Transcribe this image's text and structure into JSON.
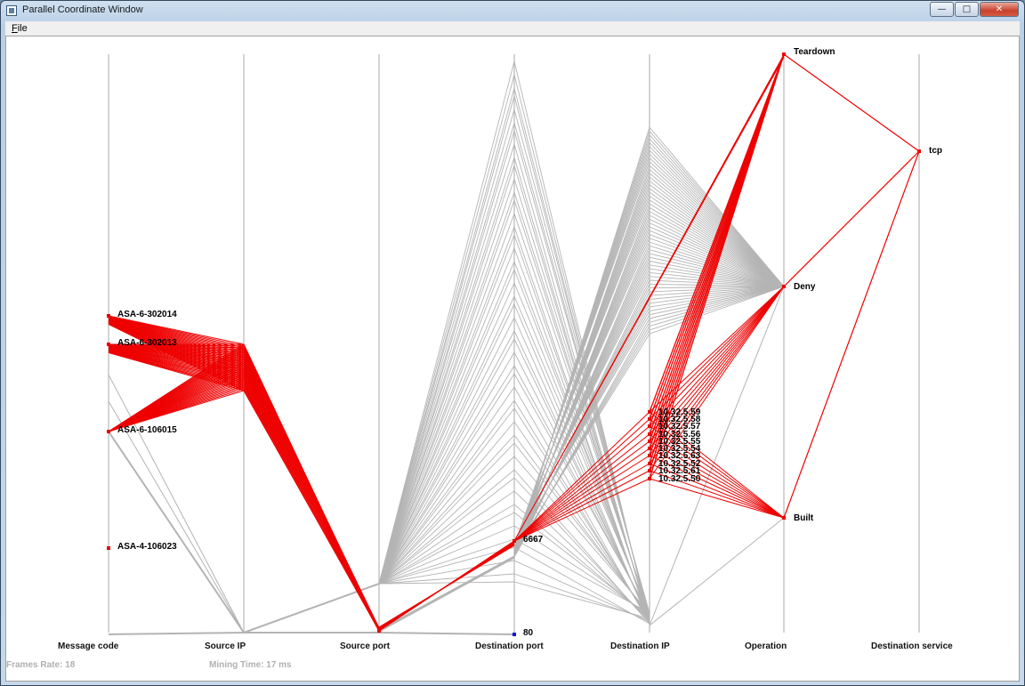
{
  "window": {
    "title": "Parallel Coordinate Window",
    "buttons": {
      "minimize": "—",
      "maximize": "□",
      "close": "✕"
    }
  },
  "menu": {
    "file_accel": "F",
    "file_rest": "ile"
  },
  "plot": {
    "axes": [
      "Message code",
      "Source IP",
      "Source port",
      "Destination port",
      "Destination IP",
      "Operation",
      "Destination service"
    ],
    "message_codes": [
      "ASA-6-302014",
      "ASA-6-302013",
      "ASA-6-106015",
      "ASA-4-106023"
    ],
    "destination_ports": [
      "6667",
      "80"
    ],
    "destination_ips": [
      "10.32.5.59",
      "10.32.5.58",
      "10.32.5.57",
      "10.32.5.56",
      "10.32.5.55",
      "10.32.5.54",
      "10.32.5.63",
      "10.32.5.52",
      "10.32.5.61",
      "10.32.5.50"
    ],
    "operations": [
      "Teardown",
      "Deny",
      "Built"
    ],
    "destination_services": [
      "tcp"
    ],
    "colors": {
      "highlight": "#ee0000",
      "context": "#b4b4b4",
      "axis": "#b8b8b8",
      "port80": "#1414d8"
    }
  },
  "status": {
    "frames_rate": "Frames Rate: 18",
    "mining_time": "Mining Time: 17 ms"
  }
}
